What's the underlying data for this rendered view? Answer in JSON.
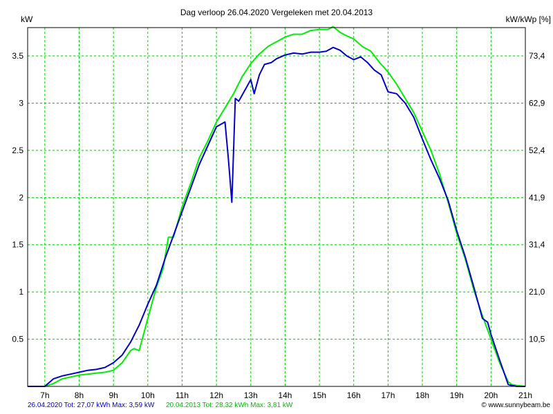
{
  "chart_data": {
    "type": "line",
    "title": "Dag  verloop 26.04.2020   Vergeleken met 20.04.2013",
    "ylabel_left": "kW",
    "ylabel_right": "kW/kWp [%]",
    "x_ticks": [
      "7h",
      "8h",
      "9h",
      "10h",
      "11h",
      "12h",
      "13h",
      "14h",
      "15h",
      "16h",
      "17h",
      "18h",
      "19h",
      "20h",
      "21h"
    ],
    "y_ticks_left": [
      "0.5",
      "1",
      "1.5",
      "2",
      "2.5",
      "3",
      "3.5"
    ],
    "y_ticks_right": [
      "10,5",
      "21,0",
      "31,4",
      "41,9",
      "52,4",
      "62,9",
      "73,4"
    ],
    "xlim": [
      6.5,
      21
    ],
    "ylim": [
      0,
      3.8
    ],
    "grid": true,
    "series": [
      {
        "name": "26.04.2020",
        "color": "#0000cc",
        "x": [
          6.5,
          7.0,
          7.25,
          7.5,
          7.75,
          8.0,
          8.25,
          8.5,
          8.75,
          9.0,
          9.25,
          9.5,
          9.75,
          10.0,
          10.25,
          10.5,
          10.75,
          11.0,
          11.25,
          11.5,
          11.75,
          12.0,
          12.25,
          12.35,
          12.45,
          12.55,
          12.65,
          12.85,
          13.0,
          13.1,
          13.25,
          13.4,
          13.6,
          13.75,
          14.0,
          14.25,
          14.5,
          14.75,
          15.0,
          15.2,
          15.4,
          15.6,
          15.8,
          16.0,
          16.2,
          16.4,
          16.6,
          16.8,
          17.0,
          17.25,
          17.5,
          17.75,
          18.0,
          18.25,
          18.5,
          18.75,
          19.0,
          19.25,
          19.5,
          19.75,
          19.9,
          20.0,
          20.25,
          20.5,
          20.6,
          20.75,
          21.0
        ],
        "y": [
          0,
          0,
          0.08,
          0.11,
          0.13,
          0.15,
          0.17,
          0.18,
          0.2,
          0.25,
          0.33,
          0.47,
          0.65,
          0.87,
          1.07,
          1.35,
          1.6,
          1.85,
          2.1,
          2.35,
          2.55,
          2.75,
          2.8,
          2.4,
          1.95,
          3.05,
          3.02,
          3.15,
          3.25,
          3.1,
          3.3,
          3.41,
          3.43,
          3.47,
          3.51,
          3.53,
          3.52,
          3.54,
          3.54,
          3.55,
          3.59,
          3.56,
          3.5,
          3.46,
          3.49,
          3.43,
          3.35,
          3.3,
          3.12,
          3.1,
          3.0,
          2.85,
          2.62,
          2.4,
          2.2,
          1.97,
          1.65,
          1.37,
          1.05,
          0.72,
          0.68,
          0.55,
          0.28,
          0.02,
          0.01,
          0,
          0
        ]
      },
      {
        "name": "20.04.2013",
        "color": "#00ee00",
        "x": [
          6.5,
          7.0,
          7.25,
          7.5,
          7.75,
          8.0,
          8.25,
          8.5,
          8.75,
          9.0,
          9.25,
          9.5,
          9.6,
          9.75,
          10.0,
          10.25,
          10.45,
          10.6,
          10.75,
          11.0,
          11.25,
          11.5,
          11.75,
          12.0,
          12.25,
          12.5,
          12.75,
          13.0,
          13.25,
          13.5,
          13.75,
          14.0,
          14.25,
          14.5,
          14.75,
          15.0,
          15.25,
          15.4,
          15.5,
          15.6,
          15.75,
          16.0,
          16.25,
          16.5,
          16.75,
          17.0,
          17.25,
          17.5,
          17.75,
          18.0,
          18.25,
          18.5,
          18.75,
          19.0,
          19.25,
          19.5,
          19.75,
          20.0,
          20.25,
          20.5,
          20.6,
          20.75,
          21.0
        ],
        "y": [
          0,
          0,
          0.03,
          0.08,
          0.1,
          0.12,
          0.13,
          0.14,
          0.15,
          0.17,
          0.25,
          0.38,
          0.4,
          0.38,
          0.72,
          1.05,
          1.25,
          1.58,
          1.58,
          1.9,
          2.15,
          2.42,
          2.6,
          2.8,
          2.95,
          3.1,
          3.28,
          3.42,
          3.52,
          3.6,
          3.65,
          3.7,
          3.73,
          3.73,
          3.77,
          3.78,
          3.78,
          3.81,
          3.78,
          3.75,
          3.72,
          3.68,
          3.6,
          3.55,
          3.43,
          3.33,
          3.2,
          3.05,
          2.9,
          2.7,
          2.5,
          2.25,
          1.95,
          1.62,
          1.35,
          1.02,
          0.75,
          0.5,
          0.25,
          0.05,
          0.02,
          0.01,
          0
        ]
      }
    ]
  },
  "footer": {
    "series1_text": "26.04.2020 Tot: 27,07 kWh Max: 3,59 kW",
    "series2_text": "20.04.2013 Tot: 28,32 kWh Max: 3,81 kW",
    "credit": "© www.sunnybeam.be",
    "series1_color": "#0000cc",
    "series2_color": "#00bb00"
  }
}
